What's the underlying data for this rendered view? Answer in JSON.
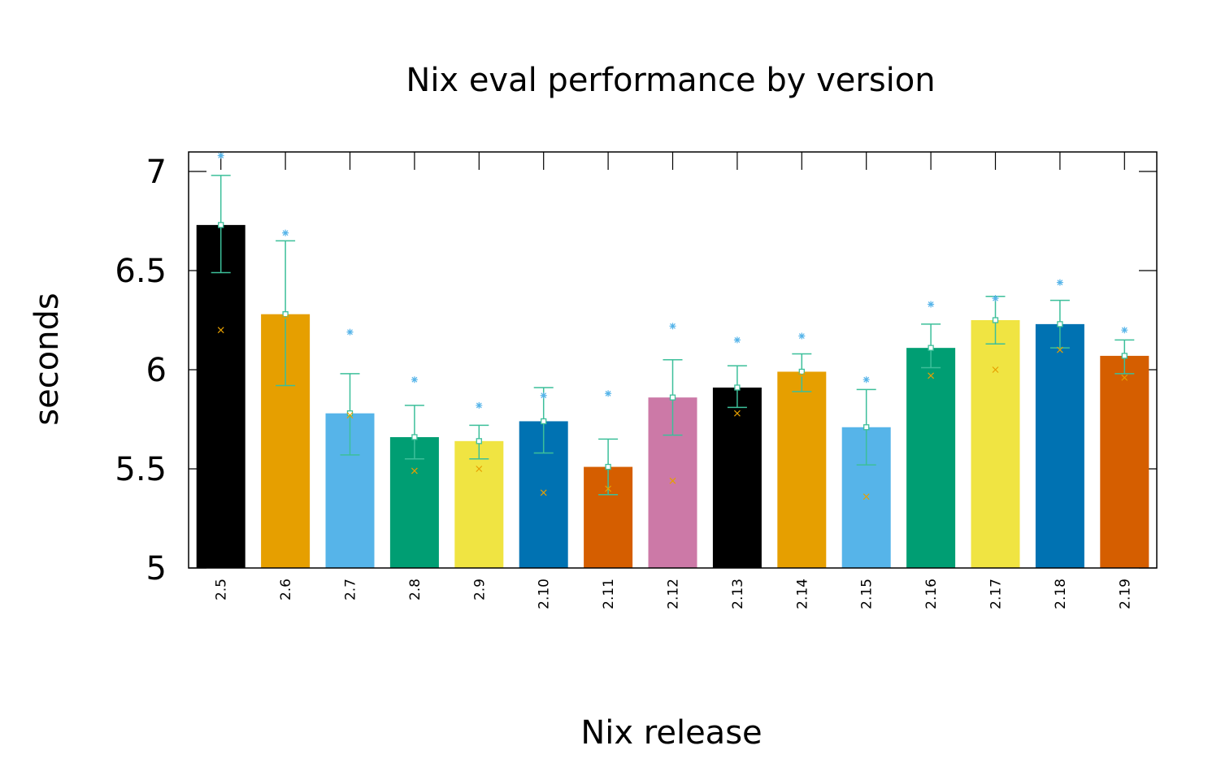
{
  "chart_data": {
    "type": "bar",
    "title": "Nix eval performance by version",
    "xlabel": "Nix release",
    "ylabel": "seconds",
    "ylim": [
      5,
      7.1
    ],
    "yticks": [
      "5",
      "5.5",
      "6",
      "6.5",
      "7"
    ],
    "categories": [
      "2.5",
      "2.6",
      "2.7",
      "2.8",
      "2.9",
      "2.10",
      "2.11",
      "2.12",
      "2.13",
      "2.14",
      "2.15",
      "2.16",
      "2.17",
      "2.18",
      "2.19"
    ],
    "values": [
      6.73,
      6.28,
      5.78,
      5.66,
      5.64,
      5.74,
      5.51,
      5.86,
      5.91,
      5.99,
      5.71,
      6.11,
      6.25,
      6.23,
      6.07
    ],
    "error_low": [
      6.49,
      5.92,
      5.57,
      5.55,
      5.55,
      5.58,
      5.37,
      5.67,
      5.81,
      5.89,
      5.52,
      6.01,
      6.13,
      6.11,
      5.98
    ],
    "error_high": [
      6.98,
      6.65,
      5.98,
      5.82,
      5.72,
      5.91,
      5.65,
      6.05,
      6.02,
      6.08,
      5.9,
      6.23,
      6.37,
      6.35,
      6.15
    ],
    "max_marker": [
      7.08,
      6.69,
      6.19,
      5.95,
      5.82,
      5.87,
      5.88,
      6.22,
      6.15,
      6.17,
      5.95,
      6.33,
      6.36,
      6.44,
      6.2
    ],
    "min_marker": [
      6.2,
      6.26,
      5.77,
      5.49,
      5.5,
      5.38,
      5.4,
      5.44,
      5.78,
      5.97,
      5.36,
      5.97,
      6.0,
      6.1,
      5.96
    ],
    "bar_colors": [
      "#000000",
      "#e69f00",
      "#56b4e9",
      "#009e73",
      "#f0e442",
      "#0072b2",
      "#d55e00",
      "#cc79a7",
      "#000000",
      "#e69f00",
      "#56b4e9",
      "#009e73",
      "#f0e442",
      "#0072b2",
      "#d55e00"
    ],
    "error_color": "#3cbf9a",
    "max_marker_color": "#56b4e9",
    "min_marker_color": "#e69f00",
    "grid": false,
    "legend": "none"
  }
}
